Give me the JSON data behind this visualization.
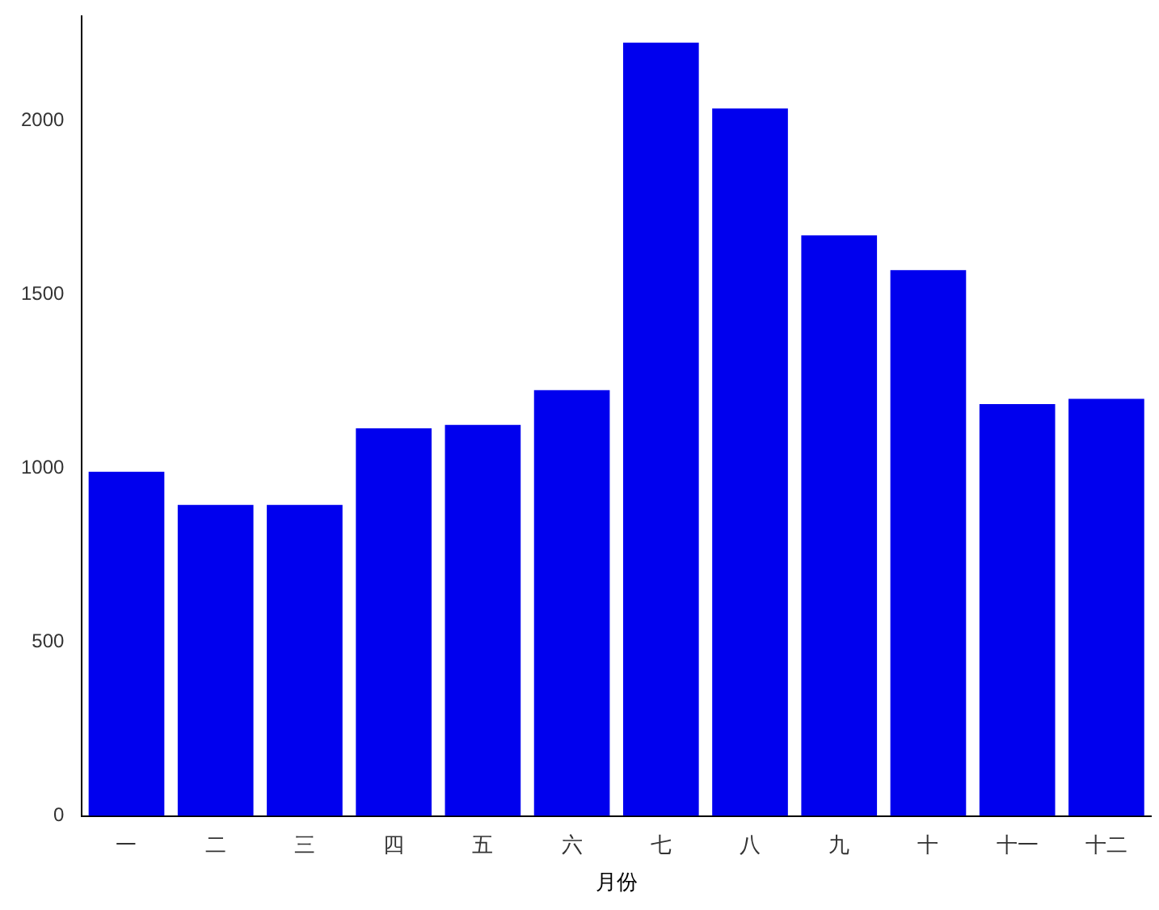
{
  "chart_data": {
    "type": "bar",
    "xlabel": "月份",
    "categories": [
      "一",
      "二",
      "三",
      "四",
      "五",
      "六",
      "七",
      "八",
      "九",
      "十",
      "十一",
      "十二"
    ],
    "values": [
      990,
      895,
      895,
      1115,
      1125,
      1225,
      2225,
      2035,
      1670,
      1570,
      1185,
      1200
    ],
    "color": "#0000ee",
    "ylim": [
      0,
      2300
    ],
    "yticks": [
      0,
      500,
      1000,
      1500,
      2000
    ],
    "grid": false,
    "legend": false
  }
}
